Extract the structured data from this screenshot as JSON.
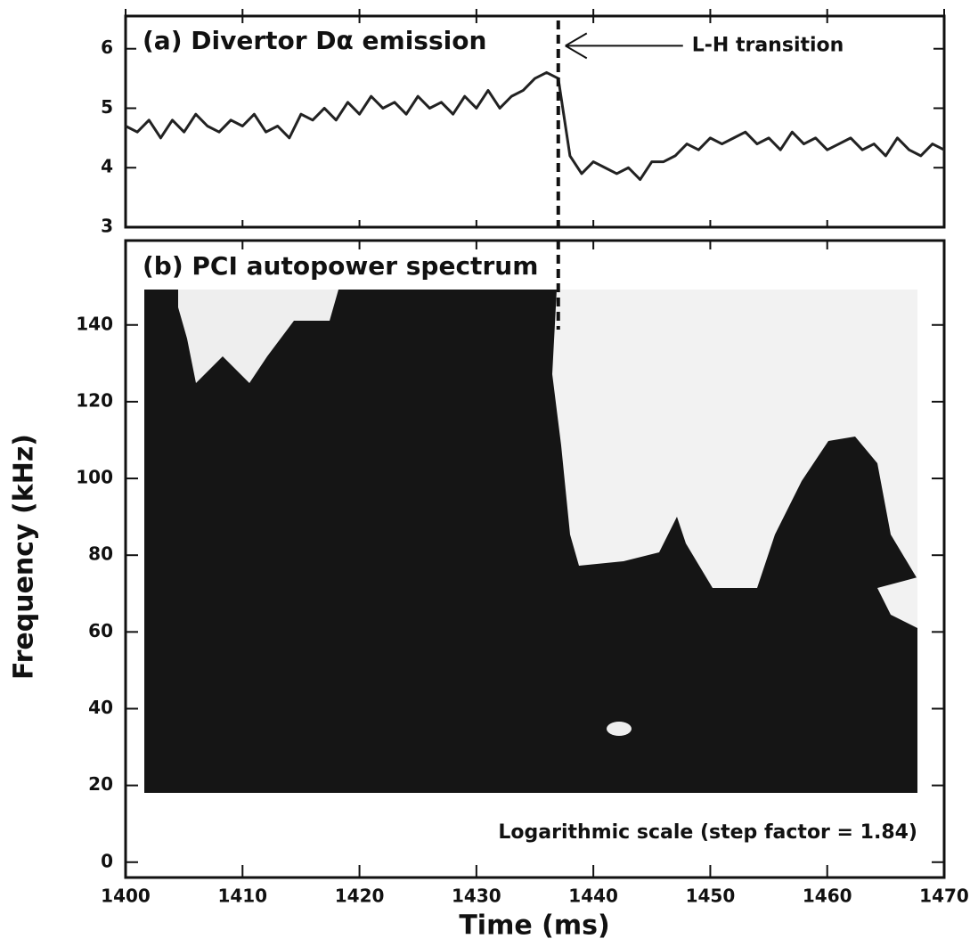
{
  "chart_data": [
    {
      "type": "line",
      "title": "(a) Divertor Dα emission",
      "annotation": {
        "text": "L-H transition",
        "x": 1437
      },
      "x": [
        1400,
        1401,
        1402,
        1403,
        1404,
        1405,
        1406,
        1407,
        1408,
        1409,
        1410,
        1411,
        1412,
        1413,
        1414,
        1415,
        1416,
        1417,
        1418,
        1419,
        1420,
        1421,
        1422,
        1423,
        1424,
        1425,
        1426,
        1427,
        1428,
        1429,
        1430,
        1431,
        1432,
        1433,
        1434,
        1435,
        1436,
        1437,
        1438,
        1439,
        1440,
        1441,
        1442,
        1443,
        1444,
        1445,
        1446,
        1447,
        1448,
        1449,
        1450,
        1451,
        1452,
        1453,
        1454,
        1455,
        1456,
        1457,
        1458,
        1459,
        1460,
        1461,
        1462,
        1463,
        1464,
        1465,
        1466,
        1467,
        1468,
        1469,
        1470
      ],
      "series": [
        {
          "color": "#222222",
          "values": [
            4.7,
            4.6,
            4.8,
            4.5,
            4.8,
            4.6,
            4.9,
            4.7,
            4.6,
            4.8,
            4.7,
            4.9,
            4.6,
            4.7,
            4.5,
            4.9,
            4.8,
            5.0,
            4.8,
            5.1,
            4.9,
            5.2,
            5.0,
            5.1,
            4.9,
            5.2,
            5.0,
            5.1,
            4.9,
            5.2,
            5.0,
            5.3,
            5.0,
            5.2,
            5.3,
            5.5,
            5.6,
            5.5,
            4.2,
            3.9,
            4.1,
            4.0,
            3.9,
            4.0,
            3.8,
            4.1,
            4.1,
            4.2,
            4.4,
            4.3,
            4.5,
            4.4,
            4.5,
            4.6,
            4.4,
            4.5,
            4.3,
            4.6,
            4.4,
            4.5,
            4.3,
            4.4,
            4.5,
            4.3,
            4.4,
            4.2,
            4.5,
            4.3,
            4.2,
            4.4,
            4.3
          ]
        }
      ],
      "xlim": [
        1400,
        1470
      ],
      "ylim": [
        3,
        6.55
      ],
      "yticks": [
        3,
        4,
        5,
        6
      ]
    },
    {
      "type": "spectrogram",
      "title": "(b) PCI autopower spectrum",
      "x_label": "Time (ms)",
      "y_label": "Frequency (kHz)",
      "note": "Logarithmic scale (step factor = 1.84)",
      "xlim": [
        1400,
        1470
      ],
      "ylim": [
        -4,
        162
      ],
      "xticks": [
        1400,
        1410,
        1420,
        1430,
        1440,
        1450,
        1460,
        1470
      ],
      "yticks": [
        0,
        20,
        40,
        60,
        80,
        100,
        120,
        140
      ]
    }
  ]
}
